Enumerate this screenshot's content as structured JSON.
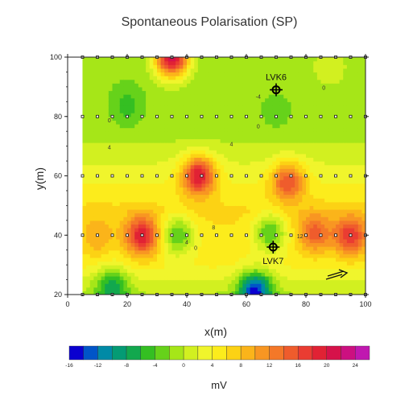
{
  "chart_data": {
    "type": "heatmap",
    "title": "Spontaneous Polarisation (SP)",
    "xlabel": "x(m)",
    "ylabel": "y(m)",
    "xlim": [
      0,
      100
    ],
    "ylim": [
      20,
      100
    ],
    "x_ticks": [
      "0",
      "20",
      "40",
      "60",
      "80",
      "100"
    ],
    "y_ticks": [
      "20",
      "40",
      "60",
      "80",
      "100"
    ],
    "x_tick_values": [
      0,
      20,
      40,
      60,
      80,
      100
    ],
    "y_tick_values": [
      20,
      40,
      60,
      80,
      100
    ],
    "data_extent": {
      "x": [
        5,
        100
      ],
      "y": [
        20,
        100
      ]
    },
    "survey_lines_y": [
      20,
      40,
      60,
      80,
      100
    ],
    "survey_point_spacing": 5,
    "contour_labels": [
      {
        "text": "0",
        "x": 14,
        "y": 78
      },
      {
        "text": "0",
        "x": 64,
        "y": 76
      },
      {
        "text": "4",
        "x": 14,
        "y": 69
      },
      {
        "text": "4",
        "x": 55,
        "y": 70
      },
      {
        "text": "-4",
        "x": 64,
        "y": 86
      },
      {
        "text": "0",
        "x": 86,
        "y": 89
      },
      {
        "text": "8",
        "x": 49,
        "y": 42
      },
      {
        "text": "12",
        "x": 78,
        "y": 39
      },
      {
        "text": "0",
        "x": 43,
        "y": 35
      },
      {
        "text": "4",
        "x": 40,
        "y": 37
      }
    ],
    "stations": [
      {
        "name": "LVK6",
        "x": 70,
        "y": 89,
        "label_position": "above"
      },
      {
        "name": "LVK7",
        "x": 69,
        "y": 36,
        "label_position": "below"
      }
    ],
    "anomalies": [
      {
        "x": 35,
        "y": 100,
        "value": 22
      },
      {
        "x": 20,
        "y": 84,
        "value": -5
      },
      {
        "x": 70,
        "y": 82,
        "value": -3
      },
      {
        "x": 88,
        "y": 97,
        "value": 2
      },
      {
        "x": 15,
        "y": 22,
        "value": -8
      },
      {
        "x": 63,
        "y": 21,
        "value": -15
      },
      {
        "x": 44,
        "y": 60,
        "value": 20
      },
      {
        "x": 74,
        "y": 58,
        "value": 16
      },
      {
        "x": 25,
        "y": 40,
        "value": 20
      },
      {
        "x": 83,
        "y": 41,
        "value": 15
      },
      {
        "x": 95,
        "y": 40,
        "value": 18
      },
      {
        "x": 10,
        "y": 40,
        "value": 10
      },
      {
        "x": 37,
        "y": 40,
        "value": -4
      },
      {
        "x": 68,
        "y": 41,
        "value": -4
      }
    ],
    "colorbar": {
      "min": -16,
      "max": 26,
      "step": 2,
      "tick_labels": [
        "-16",
        "-12",
        "-8",
        "-4",
        "0",
        "4",
        "8",
        "12",
        "16",
        "20",
        "24"
      ],
      "label": "mV",
      "colors": [
        "#0a00d0",
        "#0055c8",
        "#008aa6",
        "#049b74",
        "#12a84e",
        "#34bf22",
        "#66d21a",
        "#a6e618",
        "#d2f020",
        "#f0f52c",
        "#fcec1c",
        "#fcd214",
        "#fbb41a",
        "#f89622",
        "#f47828",
        "#ef5c2c",
        "#ea3c32",
        "#e12234",
        "#d6124a",
        "#cc1080",
        "#c018b0"
      ]
    }
  }
}
